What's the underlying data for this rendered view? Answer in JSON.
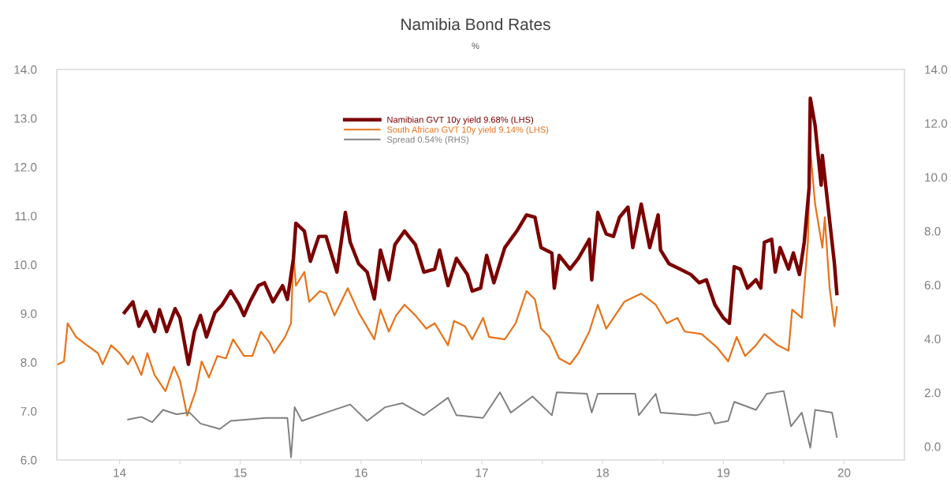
{
  "chart_data": {
    "type": "line",
    "title": "Namibia Bond Rates",
    "subtitle": "%",
    "xlim": [
      13.48,
      20.5
    ],
    "xticks": [
      14,
      {
        "value": 14.5,
        "label": null
      },
      15,
      {
        "value": 15.5,
        "label": null
      },
      16,
      {
        "value": 16.5,
        "label": null
      },
      17,
      {
        "value": 17.5,
        "label": null
      },
      18,
      {
        "value": 18.5,
        "label": null
      },
      19,
      {
        "value": 19.5,
        "label": null
      },
      20
    ],
    "ylim": [
      6.0,
      14.0
    ],
    "yticks": [
      {
        "value": 6,
        "label": "6.0"
      },
      {
        "value": 7,
        "label": "7.0"
      },
      {
        "value": 8,
        "label": "8.0"
      },
      {
        "value": 9,
        "label": "9.0"
      },
      {
        "value": 10,
        "label": "10.0"
      },
      {
        "value": 11,
        "label": "11.0"
      },
      {
        "value": 12,
        "label": "12.0"
      },
      {
        "value": 13,
        "label": "13.0"
      },
      {
        "value": 14,
        "label": "14.0"
      }
    ],
    "y2lim": [
      -0.5,
      14.0
    ],
    "y2ticks": [
      {
        "value": 0,
        "label": "0.0"
      },
      {
        "value": 2,
        "label": "2.0"
      },
      {
        "value": 4,
        "label": "4.0"
      },
      {
        "value": 6,
        "label": "6.0"
      },
      {
        "value": 8,
        "label": "8.0"
      },
      {
        "value": 10,
        "label": "10.0"
      },
      {
        "value": 12,
        "label": "12.0"
      },
      {
        "value": 14,
        "label": "14.0"
      }
    ],
    "grid": false,
    "legend": "top",
    "marker": "none",
    "line_style": "solid",
    "series": [
      {
        "name": "Namibian GVT 10y yield 9.68% (LHS)",
        "color": "#7b0000",
        "x": [
          14.04,
          14.11,
          14.16,
          14.22,
          14.29,
          14.33,
          14.39,
          14.46,
          14.5,
          14.57,
          14.62,
          14.67,
          14.72,
          14.79,
          14.85,
          14.92,
          14.99,
          15.03,
          15.08,
          15.15,
          15.2,
          15.27,
          15.35,
          15.39,
          15.44,
          15.46,
          15.53,
          15.58,
          15.65,
          15.71,
          15.8,
          15.87,
          15.91,
          15.98,
          16.05,
          16.11,
          16.16,
          16.23,
          16.28,
          16.36,
          16.45,
          16.52,
          16.61,
          16.65,
          16.72,
          16.79,
          16.88,
          16.92,
          16.99,
          17.04,
          17.1,
          17.19,
          17.29,
          17.37,
          17.44,
          17.49,
          17.58,
          17.6,
          17.64,
          17.73,
          17.8,
          17.89,
          17.91,
          17.96,
          18.03,
          18.09,
          18.14,
          18.21,
          18.25,
          18.32,
          18.39,
          18.46,
          18.48,
          18.55,
          18.64,
          18.73,
          18.8,
          18.86,
          18.93,
          19.0,
          19.05,
          19.09,
          19.14,
          19.2,
          19.27,
          19.31,
          19.34,
          19.4,
          19.43,
          19.47,
          19.54,
          19.58,
          19.63,
          19.67,
          19.71,
          19.72,
          19.76,
          19.81,
          19.82,
          19.88,
          19.92,
          19.94
        ],
        "values": [
          9.02,
          9.24,
          8.74,
          9.04,
          8.63,
          9.08,
          8.63,
          9.1,
          8.91,
          7.96,
          8.63,
          8.96,
          8.52,
          9.02,
          9.18,
          9.46,
          9.18,
          8.96,
          9.24,
          9.57,
          9.63,
          9.24,
          9.57,
          9.29,
          10.13,
          10.85,
          10.69,
          10.07,
          10.58,
          10.58,
          9.85,
          11.07,
          10.46,
          10.02,
          9.85,
          9.3,
          10.3,
          9.69,
          10.41,
          10.69,
          10.41,
          9.85,
          9.91,
          10.3,
          9.57,
          10.13,
          9.8,
          9.46,
          9.52,
          10.19,
          9.63,
          10.35,
          10.69,
          11.02,
          10.97,
          10.35,
          10.24,
          9.52,
          10.19,
          9.91,
          10.13,
          10.52,
          9.69,
          11.07,
          10.63,
          10.58,
          10.97,
          11.18,
          10.35,
          11.24,
          10.35,
          11.02,
          10.3,
          10.02,
          9.91,
          9.8,
          9.63,
          9.69,
          9.18,
          8.91,
          8.8,
          9.96,
          9.91,
          9.52,
          9.69,
          9.52,
          10.46,
          10.52,
          9.85,
          10.35,
          9.91,
          10.24,
          9.8,
          10.46,
          11.57,
          13.41,
          12.85,
          11.63,
          12.24,
          10.91,
          10.02,
          9.41
        ]
      },
      {
        "name": "South African GVT 10y yield 9.14% (LHS)",
        "color": "#e8731a",
        "x": [
          13.49,
          13.54,
          13.57,
          13.64,
          13.73,
          13.82,
          13.86,
          13.93,
          14.0,
          14.07,
          14.11,
          14.18,
          14.23,
          14.29,
          14.38,
          14.45,
          14.5,
          14.56,
          14.63,
          14.68,
          14.74,
          14.81,
          14.88,
          14.94,
          15.03,
          15.1,
          15.17,
          15.24,
          15.28,
          15.37,
          15.42,
          15.44,
          15.46,
          15.53,
          15.57,
          15.66,
          15.71,
          15.78,
          15.89,
          15.98,
          16.11,
          16.16,
          16.23,
          16.29,
          16.36,
          16.45,
          16.54,
          16.61,
          16.72,
          16.77,
          16.86,
          16.92,
          17.01,
          17.06,
          17.19,
          17.28,
          17.37,
          17.44,
          17.49,
          17.56,
          17.64,
          17.73,
          17.8,
          17.89,
          17.96,
          18.03,
          18.12,
          18.18,
          18.32,
          18.44,
          18.53,
          18.62,
          18.68,
          18.82,
          18.95,
          19.04,
          19.11,
          19.18,
          19.27,
          19.34,
          19.45,
          19.54,
          19.57,
          19.65,
          19.7,
          19.72,
          19.76,
          19.82,
          19.84,
          19.88,
          19.92,
          19.94
        ],
        "values": [
          7.96,
          8.02,
          8.8,
          8.52,
          8.35,
          8.19,
          7.96,
          8.35,
          8.19,
          7.96,
          8.13,
          7.74,
          8.19,
          7.74,
          7.41,
          7.91,
          7.63,
          6.91,
          7.41,
          8.02,
          7.69,
          8.13,
          8.08,
          8.47,
          8.13,
          8.13,
          8.63,
          8.41,
          8.19,
          8.52,
          8.8,
          10.24,
          9.57,
          9.85,
          9.24,
          9.46,
          9.41,
          8.96,
          9.52,
          9.02,
          8.47,
          9.08,
          8.63,
          8.96,
          9.18,
          8.96,
          8.69,
          8.8,
          8.35,
          8.85,
          8.74,
          8.47,
          8.91,
          8.52,
          8.47,
          8.8,
          9.46,
          9.29,
          8.69,
          8.52,
          8.08,
          7.96,
          8.19,
          8.63,
          9.18,
          8.69,
          9.02,
          9.24,
          9.41,
          9.18,
          8.8,
          8.91,
          8.63,
          8.58,
          8.3,
          8.02,
          8.52,
          8.13,
          8.35,
          8.58,
          8.35,
          8.24,
          9.08,
          8.91,
          10.46,
          12.35,
          11.24,
          10.35,
          10.97,
          9.52,
          8.74,
          9.13
        ]
      },
      {
        "name": "Spread 0.54% (RHS)",
        "color": "#808080",
        "axis": "y2",
        "x": [
          14.07,
          14.18,
          14.27,
          14.36,
          14.47,
          14.58,
          14.67,
          14.83,
          14.92,
          15.21,
          15.39,
          15.42,
          15.45,
          15.51,
          15.71,
          15.91,
          16.05,
          16.2,
          16.34,
          16.52,
          16.72,
          16.79,
          17.01,
          17.15,
          17.24,
          17.42,
          17.58,
          17.62,
          17.87,
          17.91,
          17.96,
          18.27,
          18.3,
          18.44,
          18.48,
          18.77,
          18.89,
          18.93,
          19.04,
          19.09,
          19.27,
          19.36,
          19.5,
          19.56,
          19.65,
          19.72,
          19.76,
          19.9,
          19.94
        ],
        "values": [
          1.0,
          1.1,
          0.9,
          1.36,
          1.2,
          1.26,
          0.85,
          0.65,
          0.95,
          1.06,
          1.06,
          -0.4,
          1.46,
          0.95,
          1.26,
          1.56,
          0.95,
          1.46,
          1.61,
          1.16,
          1.81,
          1.16,
          1.06,
          2.01,
          1.26,
          1.86,
          1.16,
          2.01,
          1.96,
          1.26,
          1.96,
          1.96,
          1.16,
          1.96,
          1.26,
          1.16,
          1.26,
          0.85,
          0.95,
          1.66,
          1.36,
          1.96,
          2.06,
          0.75,
          1.26,
          -0.05,
          1.36,
          1.26,
          0.35
        ]
      }
    ]
  }
}
